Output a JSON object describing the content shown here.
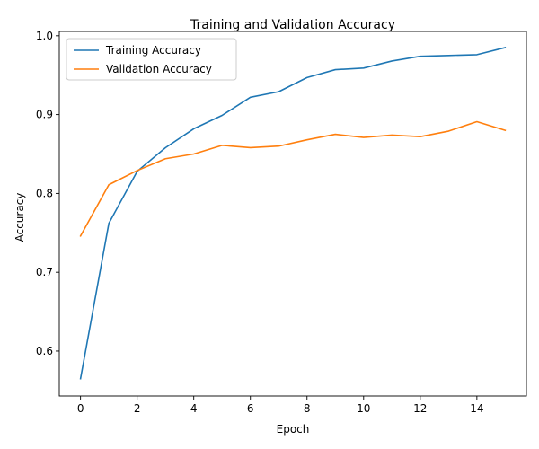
{
  "chart_data": {
    "type": "line",
    "title": "Training and Validation Accuracy",
    "xlabel": "Epoch",
    "ylabel": "Accuracy",
    "x": [
      0,
      1,
      2,
      3,
      4,
      5,
      6,
      7,
      8,
      9,
      10,
      11,
      12,
      13,
      14,
      15
    ],
    "xlim": [
      -0.75,
      15.75
    ],
    "ylim": [
      0.543,
      1.0055
    ],
    "xticks": [
      0,
      2,
      4,
      6,
      8,
      10,
      12,
      14
    ],
    "yticks": [
      0.6,
      0.7,
      0.8,
      0.9,
      1.0
    ],
    "ytick_labels": [
      "0.6",
      "0.7",
      "0.8",
      "0.9",
      "1.0"
    ],
    "grid": false,
    "legend_location": "upper-left",
    "series": [
      {
        "name": "Training Accuracy",
        "color": "#1f77b4",
        "values": [
          0.565,
          0.762,
          0.828,
          0.858,
          0.882,
          0.899,
          0.922,
          0.929,
          0.947,
          0.957,
          0.959,
          0.968,
          0.974,
          0.975,
          0.976,
          0.985
        ]
      },
      {
        "name": "Validation Accuracy",
        "color": "#ff7f0e",
        "values": [
          0.746,
          0.811,
          0.829,
          0.844,
          0.85,
          0.861,
          0.858,
          0.86,
          0.868,
          0.875,
          0.871,
          0.874,
          0.872,
          0.879,
          0.891,
          0.88
        ]
      }
    ]
  }
}
